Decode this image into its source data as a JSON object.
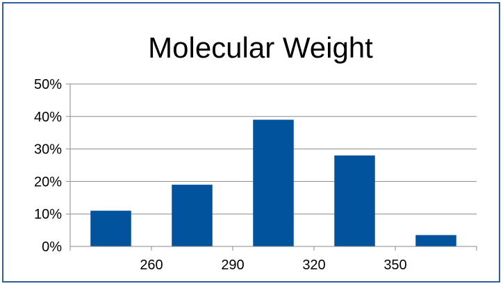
{
  "chart_data": {
    "type": "bar",
    "title": "Molecular Weight",
    "xlabel": "",
    "ylabel": "",
    "values": [
      11,
      19,
      39,
      28,
      3.5
    ],
    "x_tick_labels": [
      "260",
      "290",
      "320",
      "350"
    ],
    "y_tick_labels": [
      "0%",
      "10%",
      "20%",
      "30%",
      "40%",
      "50%"
    ],
    "ylim": [
      0,
      50
    ],
    "y_unit": "%",
    "grid": true,
    "legend": "none",
    "bar_color": "#00539c"
  }
}
